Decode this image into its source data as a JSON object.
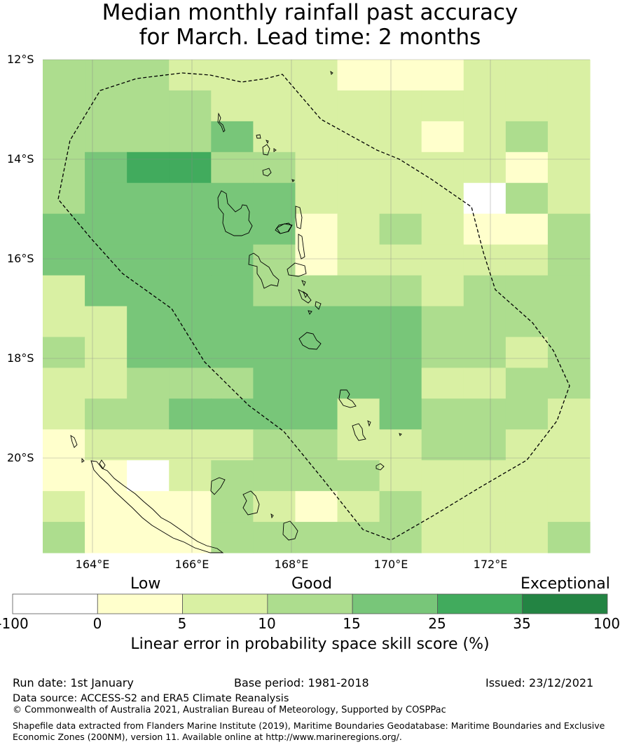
{
  "title": {
    "line1": "Median monthly rainfall past accuracy",
    "line2": "for March. Lead time: 2 months"
  },
  "map": {
    "lat_labels": [
      "12°S",
      "14°S",
      "16°S",
      "18°S",
      "20°S"
    ],
    "lon_labels": [
      "164°E",
      "166°E",
      "168°E",
      "170°E",
      "172°E"
    ],
    "grid_rows": [
      "3332222111222",
      "3333222222222",
      "3333422221232",
      "3455332222212",
      "3444442222032",
      "4444441232113",
      "4444431222223",
      "2444433332333",
      "2244444443333",
      "3244444443323",
      "2233344442233",
      "2334444243332",
      "1222233223322",
      "1102333322222",
      "2111321232222",
      "3111333332223"
    ],
    "palette": {
      "0": "#ffffff",
      "1": "#ffffcc",
      "2": "#d9f0a3",
      "3": "#addd8e",
      "4": "#78c679",
      "5": "#41ab5d",
      "6": "#238443"
    }
  },
  "colorbar": {
    "categories": [
      "Low",
      "Good",
      "Exceptional"
    ],
    "ticks": [
      "-100",
      "0",
      "5",
      "10",
      "15",
      "25",
      "35",
      "100"
    ],
    "colors": [
      "#ffffff",
      "#ffffcc",
      "#d9f0a3",
      "#addd8e",
      "#78c679",
      "#41ab5d",
      "#238443"
    ],
    "label": "Linear error in probability space skill score (%)"
  },
  "footer": {
    "run_date": "Run date: 1st January",
    "base_period": "Base period: 1981-2018",
    "issued": "Issued: 23/12/2021",
    "data_source": "Data source: ACCESS-S2 and ERA5 Climate Reanalysis",
    "copyright": "© Commonwealth of Australia 2021, Australian Bureau of Meteorology, Supported by COSPPac",
    "shapefile": "Shapefile data extracted from Flanders Marine Institute (2019), Maritime Boundaries Geodatabase: Maritime Boundaries and Exclusive Economic Zones (200NM), version 11. Available online at http://www.marineregions.org/."
  }
}
